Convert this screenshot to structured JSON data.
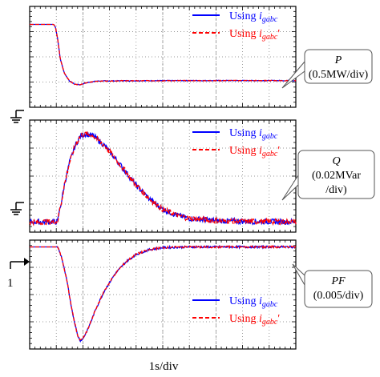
{
  "figure": {
    "xlabel": "1s/div",
    "marker_label": "1",
    "legend": {
      "using_prefix": "Using",
      "series_a_sub": "gabc",
      "series_b_sub": "gabc",
      "series_b_prime": "′"
    },
    "colors": {
      "series_a": "#0000ff",
      "series_b": "#ff0000",
      "grid": "#777777",
      "frame": "#000000"
    },
    "icons": [
      "ground-icon",
      "ground-icon",
      "level-marker-arrow-icon"
    ]
  },
  "chart_data": [
    {
      "type": "line",
      "panel": "P",
      "box_label": {
        "name": "P",
        "scale": "(0.5MW/div)"
      },
      "x_unit": "div (1s/div)",
      "x_range": [
        0,
        10
      ],
      "y_unit": "div",
      "y_range": [
        -1.6,
        4.0
      ],
      "grid": true,
      "legend_placement": "top-right",
      "series": [
        {
          "key": "a",
          "noise": 0.02,
          "points": [
            [
              0,
              3
            ],
            [
              0.9,
              3
            ],
            [
              0.97,
              2.85
            ],
            [
              1.05,
              2.2
            ],
            [
              1.15,
              1.1
            ],
            [
              1.3,
              0.3
            ],
            [
              1.5,
              -0.15
            ],
            [
              1.7,
              -0.32
            ],
            [
              1.9,
              -0.35
            ],
            [
              2.1,
              -0.25
            ],
            [
              2.5,
              -0.15
            ],
            [
              3.5,
              -0.13
            ],
            [
              6,
              -0.12
            ],
            [
              10,
              -0.12
            ]
          ]
        },
        {
          "key": "b",
          "noise": 0.02,
          "points": [
            [
              0,
              3
            ],
            [
              0.9,
              3
            ],
            [
              0.97,
              2.85
            ],
            [
              1.05,
              2.2
            ],
            [
              1.15,
              1.1
            ],
            [
              1.3,
              0.3
            ],
            [
              1.5,
              -0.15
            ],
            [
              1.7,
              -0.32
            ],
            [
              1.9,
              -0.35
            ],
            [
              2.1,
              -0.25
            ],
            [
              2.5,
              -0.15
            ],
            [
              3.5,
              -0.13
            ],
            [
              6,
              -0.12
            ],
            [
              10,
              -0.12
            ]
          ]
        }
      ]
    },
    {
      "type": "line",
      "panel": "Q",
      "box_label": {
        "name": "Q",
        "scale": "(0.02MVar",
        "scale2": "/div)"
      },
      "x_unit": "div (1s/div)",
      "x_range": [
        0,
        10
      ],
      "y_unit": "div",
      "y_range": [
        -0.45,
        4.45
      ],
      "grid": true,
      "legend_placement": "top-right",
      "series": [
        {
          "key": "a",
          "noise": 0.08,
          "points": [
            [
              0,
              0
            ],
            [
              1.05,
              0
            ],
            [
              1.12,
              0.5
            ],
            [
              1.2,
              0.9
            ],
            [
              1.3,
              1.6
            ],
            [
              1.5,
              2.6
            ],
            [
              1.7,
              3.3
            ],
            [
              1.9,
              3.75
            ],
            [
              2.1,
              3.85
            ],
            [
              2.4,
              3.75
            ],
            [
              2.8,
              3.35
            ],
            [
              3.2,
              2.8
            ],
            [
              3.6,
              2.2
            ],
            [
              4.0,
              1.6
            ],
            [
              4.5,
              1.0
            ],
            [
              5.0,
              0.55
            ],
            [
              5.5,
              0.3
            ],
            [
              6.0,
              0.15
            ],
            [
              7,
              0.05
            ],
            [
              8,
              0.02
            ],
            [
              10,
              0.0
            ]
          ]
        },
        {
          "key": "b",
          "noise": 0.08,
          "points": [
            [
              0,
              0
            ],
            [
              1.05,
              0
            ],
            [
              1.12,
              0.5
            ],
            [
              1.2,
              0.9
            ],
            [
              1.3,
              1.6
            ],
            [
              1.5,
              2.6
            ],
            [
              1.7,
              3.3
            ],
            [
              1.9,
              3.75
            ],
            [
              2.1,
              3.85
            ],
            [
              2.4,
              3.75
            ],
            [
              2.8,
              3.35
            ],
            [
              3.2,
              2.8
            ],
            [
              3.6,
              2.2
            ],
            [
              4.0,
              1.6
            ],
            [
              4.5,
              1.0
            ],
            [
              5.0,
              0.55
            ],
            [
              5.5,
              0.3
            ],
            [
              6.0,
              0.15
            ],
            [
              7,
              0.05
            ],
            [
              8,
              0.02
            ],
            [
              10,
              0.0
            ]
          ]
        }
      ]
    },
    {
      "type": "line",
      "panel": "PF",
      "box_label": {
        "name": "PF",
        "scale": "(0.005/div)"
      },
      "x_unit": "div (1s/div)",
      "x_range": [
        0,
        10
      ],
      "y_unit": "div",
      "y_range": [
        -3.0,
        0.2
      ],
      "grid": true,
      "legend_placement": "bottom-right",
      "series": [
        {
          "key": "a",
          "noise": 0.03,
          "points": [
            [
              0,
              0
            ],
            [
              1.05,
              0
            ],
            [
              1.2,
              -0.3
            ],
            [
              1.4,
              -1.0
            ],
            [
              1.6,
              -1.9
            ],
            [
              1.8,
              -2.6
            ],
            [
              1.9,
              -2.75
            ],
            [
              2.0,
              -2.7
            ],
            [
              2.2,
              -2.4
            ],
            [
              2.5,
              -1.8
            ],
            [
              2.8,
              -1.3
            ],
            [
              3.2,
              -0.8
            ],
            [
              3.6,
              -0.45
            ],
            [
              4.0,
              -0.22
            ],
            [
              4.5,
              -0.08
            ],
            [
              5,
              -0.02
            ],
            [
              6,
              0
            ],
            [
              10,
              0
            ]
          ]
        },
        {
          "key": "b",
          "noise": 0.03,
          "points": [
            [
              0,
              0
            ],
            [
              1.05,
              0
            ],
            [
              1.2,
              -0.3
            ],
            [
              1.4,
              -1.0
            ],
            [
              1.6,
              -1.9
            ],
            [
              1.8,
              -2.6
            ],
            [
              1.9,
              -2.75
            ],
            [
              2.0,
              -2.7
            ],
            [
              2.2,
              -2.4
            ],
            [
              2.5,
              -1.8
            ],
            [
              2.8,
              -1.3
            ],
            [
              3.2,
              -0.8
            ],
            [
              3.6,
              -0.45
            ],
            [
              4.0,
              -0.22
            ],
            [
              4.5,
              -0.08
            ],
            [
              5,
              -0.02
            ],
            [
              6,
              0
            ],
            [
              10,
              0
            ]
          ]
        }
      ]
    }
  ]
}
